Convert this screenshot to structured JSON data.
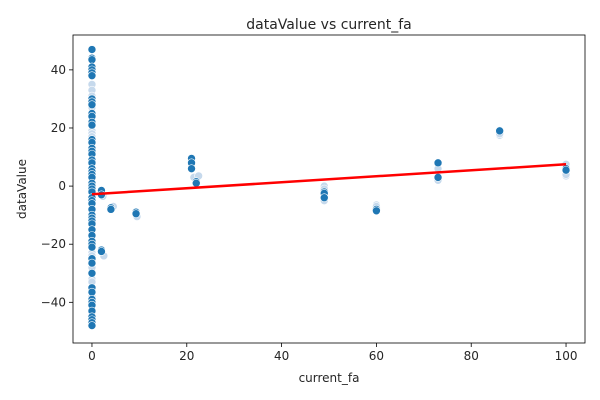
{
  "chart_data": {
    "type": "scatter",
    "title": "dataValue vs current_fa",
    "xlabel": "current_fa",
    "ylabel": "dataValue",
    "xlim": [
      -4,
      104
    ],
    "ylim": [
      -54,
      52
    ],
    "xticks": [
      0,
      20,
      40,
      60,
      80,
      100
    ],
    "yticks": [
      -40,
      -20,
      0,
      20,
      40
    ],
    "grid": false,
    "colors": {
      "point": "#1f77b4",
      "point_faint": "#c6d9ec",
      "point_edge": "#ffffff",
      "regression_line": "#ff0000",
      "axes": "#000000"
    },
    "series": [
      {
        "points": [
          [
            0,
            47
          ],
          [
            0,
            44
          ],
          [
            0,
            43.5
          ],
          [
            0,
            41
          ],
          [
            0,
            40
          ],
          [
            0,
            39
          ],
          [
            0,
            38
          ],
          [
            0,
            30
          ],
          [
            0,
            29
          ],
          [
            0,
            28
          ],
          [
            0,
            25
          ],
          [
            0,
            24
          ],
          [
            0,
            22
          ],
          [
            0,
            21
          ],
          [
            0,
            16
          ],
          [
            0,
            15
          ],
          [
            0,
            13
          ],
          [
            0,
            12
          ],
          [
            0,
            11
          ],
          [
            0,
            9
          ],
          [
            0,
            8
          ],
          [
            0,
            6
          ],
          [
            0,
            5
          ],
          [
            0,
            4
          ],
          [
            0,
            3
          ],
          [
            0,
            1
          ],
          [
            0,
            0
          ],
          [
            0,
            -1
          ],
          [
            0,
            -2
          ],
          [
            0,
            -4
          ],
          [
            0,
            -5
          ],
          [
            0,
            -6
          ],
          [
            0,
            -8
          ],
          [
            0,
            -10
          ],
          [
            0,
            -11
          ],
          [
            0,
            -12
          ],
          [
            0,
            -13
          ],
          [
            0,
            -15
          ],
          [
            0,
            -17
          ],
          [
            0,
            -19
          ],
          [
            0,
            -20
          ],
          [
            0,
            -21
          ],
          [
            0,
            -25
          ],
          [
            0,
            -26.5
          ],
          [
            0,
            -30
          ],
          [
            0,
            -35
          ],
          [
            0,
            -36.5
          ],
          [
            0,
            -39
          ],
          [
            0,
            -40
          ],
          [
            0,
            -41
          ],
          [
            0,
            -43
          ],
          [
            0,
            -45
          ],
          [
            0,
            -46
          ],
          [
            0,
            -47
          ],
          [
            0,
            -48
          ],
          [
            2,
            -1.5
          ],
          [
            2,
            -3
          ],
          [
            2,
            -22
          ],
          [
            2,
            -22.5
          ],
          [
            4,
            -7.5
          ],
          [
            4,
            -8
          ],
          [
            9.3,
            -9
          ],
          [
            9.3,
            -9.5
          ],
          [
            21,
            9.5
          ],
          [
            21,
            8
          ],
          [
            21,
            6
          ],
          [
            22,
            1.5
          ],
          [
            22,
            1
          ],
          [
            49,
            -2
          ],
          [
            49,
            -2.5
          ],
          [
            49,
            -4
          ],
          [
            60,
            -8
          ],
          [
            60,
            -8.5
          ],
          [
            73,
            8
          ],
          [
            73,
            3
          ],
          [
            86,
            19
          ],
          [
            100,
            6
          ],
          [
            100,
            5.5
          ]
        ],
        "faint_points": [
          [
            0,
            35
          ],
          [
            0,
            33
          ],
          [
            0,
            31
          ],
          [
            0,
            27
          ],
          [
            0,
            19
          ],
          [
            0,
            18
          ],
          [
            0,
            17
          ],
          [
            0,
            -23
          ],
          [
            0,
            -24
          ],
          [
            0,
            -28
          ],
          [
            0,
            -32
          ],
          [
            0,
            -33
          ],
          [
            0,
            -38
          ],
          [
            0,
            -44
          ],
          [
            2.5,
            -24
          ],
          [
            2.3,
            -3.5
          ],
          [
            4.5,
            -7
          ],
          [
            9.5,
            -10.5
          ],
          [
            21.5,
            3
          ],
          [
            22.5,
            3.5
          ],
          [
            49,
            -3.5
          ],
          [
            49,
            -5
          ],
          [
            49,
            0
          ],
          [
            49,
            -1
          ],
          [
            60,
            -6.5
          ],
          [
            60,
            -7
          ],
          [
            73,
            2
          ],
          [
            73,
            6
          ],
          [
            86,
            17.5
          ],
          [
            86,
            18
          ],
          [
            100,
            3.5
          ],
          [
            100,
            4
          ],
          [
            100,
            7.5
          ]
        ]
      }
    ],
    "regression_line": {
      "x": [
        0,
        100
      ],
      "y": [
        -2.8,
        7.5
      ]
    }
  }
}
